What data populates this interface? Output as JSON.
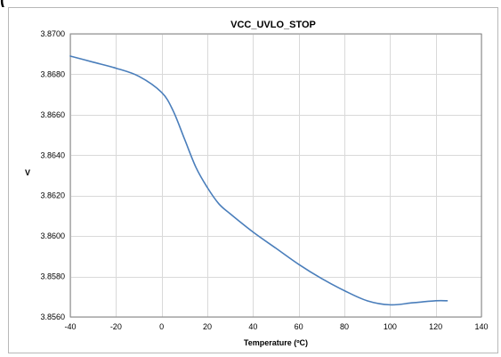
{
  "top_fragment": "(",
  "chart_data": {
    "type": "line",
    "title": "VCC_UVLO_STOP",
    "xlabel": "Temperature (ºC)",
    "ylabel": "V",
    "xlim": [
      -40,
      140
    ],
    "ylim": [
      3.856,
      3.87
    ],
    "x_ticks": [
      -40,
      -20,
      0,
      20,
      40,
      60,
      80,
      100,
      120,
      140
    ],
    "x_tick_labels": [
      "-40",
      "-20",
      "0",
      "20",
      "40",
      "60",
      "80",
      "100",
      "120",
      "140"
    ],
    "y_ticks": [
      3.856,
      3.858,
      3.86,
      3.862,
      3.864,
      3.866,
      3.868,
      3.87
    ],
    "y_tick_labels": [
      "3.8560",
      "3.8580",
      "3.8600",
      "3.8620",
      "3.8640",
      "3.8660",
      "3.8680",
      "3.8700"
    ],
    "grid": true,
    "legend": "none",
    "series": [
      {
        "color": "#4a7ebb",
        "x": [
          -40,
          -30,
          -20,
          -10,
          0,
          5,
          10,
          15,
          20,
          25,
          30,
          40,
          50,
          60,
          70,
          80,
          90,
          100,
          110,
          120,
          125
        ],
        "y": [
          3.8689,
          3.8686,
          3.8683,
          3.8679,
          3.8671,
          3.8662,
          3.8648,
          3.8634,
          3.8624,
          3.8616,
          3.8611,
          3.8602,
          3.8594,
          3.8586,
          3.8579,
          3.8573,
          3.8568,
          3.8566,
          3.8567,
          3.8568,
          3.8568
        ]
      }
    ]
  }
}
